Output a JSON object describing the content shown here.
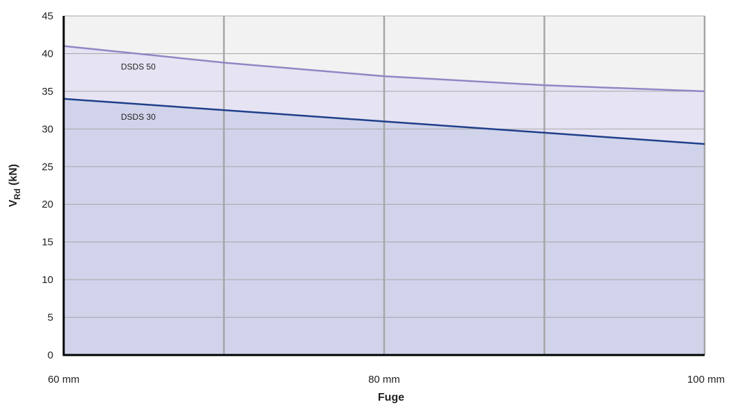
{
  "chart_data": {
    "type": "area",
    "title": "",
    "xlabel": "Fuge",
    "ylabel": {
      "main": "V",
      "sub": "Rd",
      "unit": " (kN)"
    },
    "x_tick_labels": [
      "60 mm",
      "80 mm",
      "100 mm"
    ],
    "x_ticks": [
      60,
      80,
      100
    ],
    "xlim": [
      60,
      100
    ],
    "ylim": [
      0,
      45
    ],
    "y_ticks": [
      0,
      5,
      10,
      15,
      20,
      25,
      30,
      35,
      40,
      45
    ],
    "grid": true,
    "x": [
      60,
      70,
      80,
      90,
      100
    ],
    "series": [
      {
        "name": "DSDS 50",
        "values": [
          41,
          38.8,
          37,
          35.8,
          35
        ],
        "line_color": "#8f87c4",
        "fill_color": "#e6e3f3"
      },
      {
        "name": "DSDS 30",
        "values": [
          34,
          32.5,
          31,
          29.5,
          28
        ],
        "line_color": "#1f3f8a",
        "fill_color": "#d0d3ea"
      }
    ],
    "background_color": "#f2f2f2",
    "grid_color": "#a6a6a6",
    "axis_color": "#000000"
  }
}
